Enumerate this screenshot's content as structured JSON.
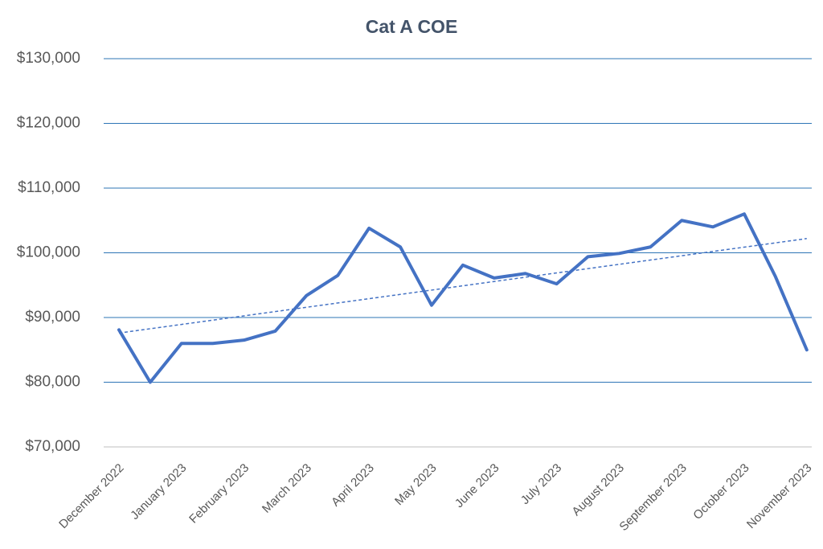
{
  "chart_data": {
    "type": "line",
    "title": "Cat A COE",
    "categories": [
      "December 2022",
      null,
      "January 2023",
      null,
      "February 2023",
      null,
      "March 2023",
      null,
      "April 2023",
      null,
      "May 2023",
      null,
      "June 2023",
      null,
      "July 2023",
      null,
      "August 2023",
      null,
      "September 2023",
      null,
      "October 2023",
      null,
      "November 2023"
    ],
    "values": [
      88100,
      80000,
      86000,
      86000,
      86500,
      87900,
      93400,
      96500,
      103800,
      100900,
      91900,
      98100,
      96100,
      96800,
      95200,
      99400,
      99900,
      100900,
      105000,
      104000,
      106000,
      96300,
      85000
    ],
    "color": "#4472c4",
    "trendline": {
      "y_start": 87600,
      "y_end": 102200,
      "style": "dashed"
    },
    "ylim": [
      70000,
      130000
    ],
    "yticks": [
      {
        "value": 70000,
        "label": "$70,000"
      },
      {
        "value": 80000,
        "label": "$80,000"
      },
      {
        "value": 90000,
        "label": "$90,000"
      },
      {
        "value": 100000,
        "label": "$100,000"
      },
      {
        "value": 110000,
        "label": "$110,000"
      },
      {
        "value": 120000,
        "label": "$120,000"
      },
      {
        "value": 130000,
        "label": "$130,000"
      }
    ],
    "grid": true
  }
}
